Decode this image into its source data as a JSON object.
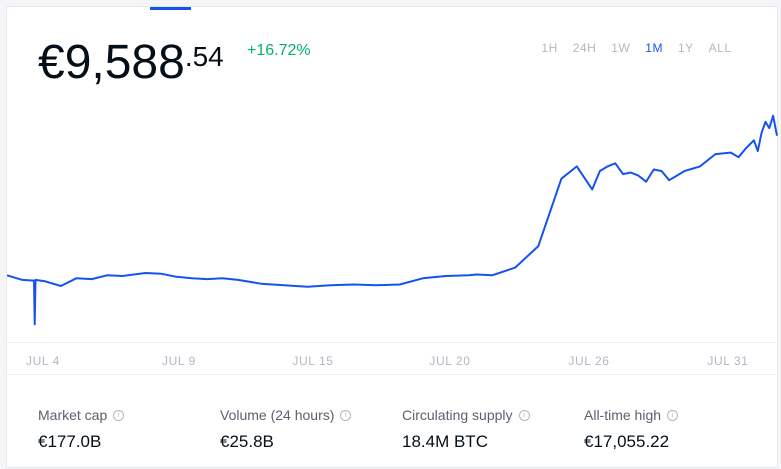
{
  "price": {
    "currency": "€",
    "whole": "9,588",
    "cents": ".54",
    "change": "+16.72%"
  },
  "ranges": [
    {
      "label": "1H",
      "active": false
    },
    {
      "label": "24H",
      "active": false
    },
    {
      "label": "1W",
      "active": false
    },
    {
      "label": "1M",
      "active": true
    },
    {
      "label": "1Y",
      "active": false
    },
    {
      "label": "ALL",
      "active": false
    }
  ],
  "colors": {
    "line": "#1652f0",
    "positive": "#05b169",
    "accent": "#1652f0"
  },
  "chart_data": {
    "type": "line",
    "x_tick_labels": [
      "JUL 4",
      "JUL 9",
      "JUL 15",
      "JUL 20",
      "JUL 26",
      "JUL 31"
    ],
    "x": [
      0,
      0.02,
      0.035,
      0.036,
      0.037,
      0.05,
      0.07,
      0.09,
      0.11,
      0.13,
      0.15,
      0.18,
      0.2,
      0.22,
      0.24,
      0.26,
      0.28,
      0.3,
      0.33,
      0.36,
      0.39,
      0.42,
      0.45,
      0.48,
      0.51,
      0.54,
      0.57,
      0.6,
      0.61,
      0.63,
      0.66,
      0.69,
      0.72,
      0.74,
      0.76,
      0.77,
      0.78,
      0.79,
      0.8,
      0.81,
      0.82,
      0.83,
      0.84,
      0.85,
      0.86,
      0.88,
      0.9,
      0.92,
      0.94,
      0.95,
      0.96,
      0.97,
      0.975,
      0.98,
      0.985,
      0.99,
      0.995,
      1.0
    ],
    "values": [
      8270,
      8240,
      8235,
      7950,
      8240,
      8230,
      8200,
      8250,
      8245,
      8270,
      8265,
      8285,
      8280,
      8260,
      8250,
      8245,
      8250,
      8240,
      8215,
      8205,
      8195,
      8205,
      8210,
      8205,
      8210,
      8250,
      8265,
      8270,
      8275,
      8270,
      8320,
      8460,
      8900,
      8980,
      8830,
      8950,
      8980,
      9000,
      8930,
      8940,
      8920,
      8880,
      8960,
      8950,
      8890,
      8950,
      8980,
      9060,
      9070,
      9040,
      9100,
      9150,
      9080,
      9200,
      9270,
      9230,
      9310,
      9180
    ],
    "ylim": [
      7900,
      9400
    ],
    "title": "",
    "xlabel": "",
    "ylabel": ""
  },
  "stats": [
    {
      "label": "Market cap",
      "value": "€177.0B"
    },
    {
      "label": "Volume (24 hours)",
      "value": "€25.8B"
    },
    {
      "label": "Circulating supply",
      "value": "18.4M BTC"
    },
    {
      "label": "All-time high",
      "value": "€17,055.22"
    }
  ],
  "icons": {
    "info": "info-icon"
  }
}
